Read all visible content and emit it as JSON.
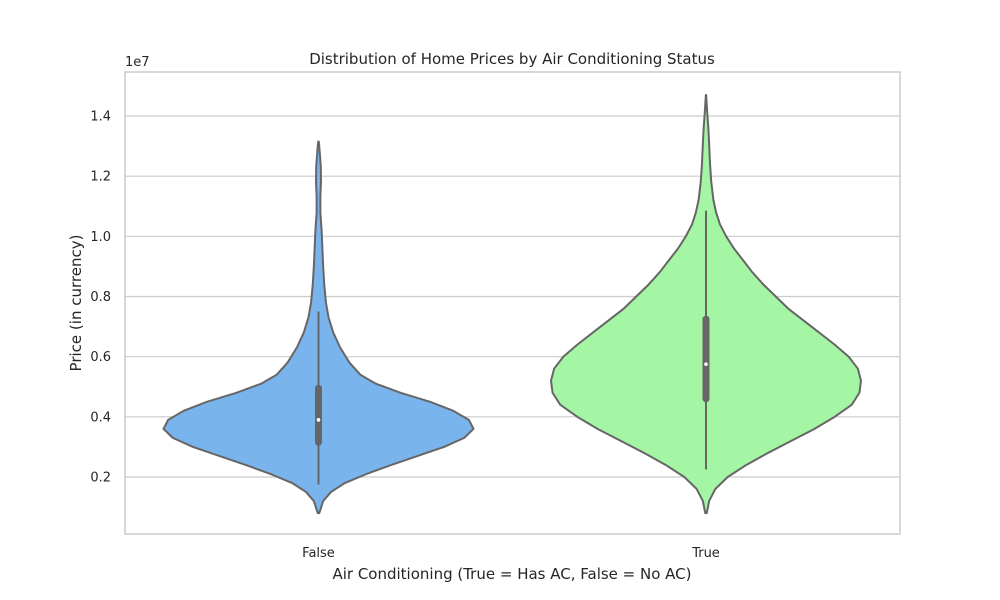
{
  "chart_data": {
    "type": "violin",
    "title": "Distribution of Home Prices by Air Conditioning Status",
    "xlabel": "Air Conditioning (True = Has AC, False = No AC)",
    "ylabel": "Price (in currency)",
    "y_offset_label": "1e7",
    "categories": [
      "False",
      "True"
    ],
    "y_ticks": [
      {
        "value": 2000000,
        "label": "0.2"
      },
      {
        "value": 4000000,
        "label": "0.4"
      },
      {
        "value": 6000000,
        "label": "0.6"
      },
      {
        "value": 8000000,
        "label": "0.8"
      },
      {
        "value": 10000000,
        "label": "1.0"
      },
      {
        "value": 12000000,
        "label": "1.2"
      },
      {
        "value": 14000000,
        "label": "1.4"
      }
    ],
    "ylim": [
      200000,
      15500000
    ],
    "grid": "horizontal",
    "series": [
      {
        "category": "False",
        "color": "#7ab4ed",
        "min": 1750000,
        "q1": 3150000,
        "median": 3900000,
        "q3": 4950000,
        "max": 7500000,
        "kde_extent": [
          800000,
          13150000
        ],
        "density_profile": [
          [
            800000,
            0.005
          ],
          [
            1200000,
            0.03
          ],
          [
            1500000,
            0.08
          ],
          [
            1800000,
            0.17
          ],
          [
            2100000,
            0.31
          ],
          [
            2400000,
            0.47
          ],
          [
            2700000,
            0.64
          ],
          [
            3000000,
            0.81
          ],
          [
            3300000,
            0.94
          ],
          [
            3600000,
            1.0
          ],
          [
            3900000,
            0.97
          ],
          [
            4200000,
            0.87
          ],
          [
            4500000,
            0.72
          ],
          [
            4800000,
            0.53
          ],
          [
            5100000,
            0.37
          ],
          [
            5400000,
            0.27
          ],
          [
            5800000,
            0.2
          ],
          [
            6300000,
            0.14
          ],
          [
            6800000,
            0.095
          ],
          [
            7300000,
            0.065
          ],
          [
            7800000,
            0.048
          ],
          [
            8400000,
            0.037
          ],
          [
            9000000,
            0.03
          ],
          [
            9600000,
            0.025
          ],
          [
            10200000,
            0.02
          ],
          [
            10800000,
            0.012
          ],
          [
            11300000,
            0.012
          ],
          [
            11800000,
            0.016
          ],
          [
            12300000,
            0.015
          ],
          [
            12800000,
            0.008
          ],
          [
            13150000,
            0.002
          ]
        ]
      },
      {
        "category": "True",
        "color": "#a4f5a4",
        "min": 2250000,
        "q1": 4600000,
        "median": 5750000,
        "q3": 7250000,
        "max": 10850000,
        "kde_extent": [
          800000,
          14700000
        ],
        "density_profile": [
          [
            800000,
            0.005
          ],
          [
            1200000,
            0.02
          ],
          [
            1600000,
            0.06
          ],
          [
            2000000,
            0.14
          ],
          [
            2400000,
            0.26
          ],
          [
            2800000,
            0.4
          ],
          [
            3200000,
            0.55
          ],
          [
            3600000,
            0.7
          ],
          [
            4000000,
            0.83
          ],
          [
            4400000,
            0.94
          ],
          [
            4800000,
            0.99
          ],
          [
            5200000,
            1.0
          ],
          [
            5600000,
            0.98
          ],
          [
            6000000,
            0.92
          ],
          [
            6400000,
            0.83
          ],
          [
            6800000,
            0.73
          ],
          [
            7200000,
            0.63
          ],
          [
            7600000,
            0.53
          ],
          [
            8000000,
            0.45
          ],
          [
            8400000,
            0.37
          ],
          [
            8800000,
            0.3
          ],
          [
            9200000,
            0.24
          ],
          [
            9600000,
            0.18
          ],
          [
            10000000,
            0.13
          ],
          [
            10400000,
            0.09
          ],
          [
            10800000,
            0.065
          ],
          [
            11200000,
            0.048
          ],
          [
            11800000,
            0.034
          ],
          [
            12400000,
            0.026
          ],
          [
            13000000,
            0.021
          ],
          [
            13600000,
            0.015
          ],
          [
            14100000,
            0.008
          ],
          [
            14700000,
            0.001
          ]
        ]
      }
    ]
  }
}
